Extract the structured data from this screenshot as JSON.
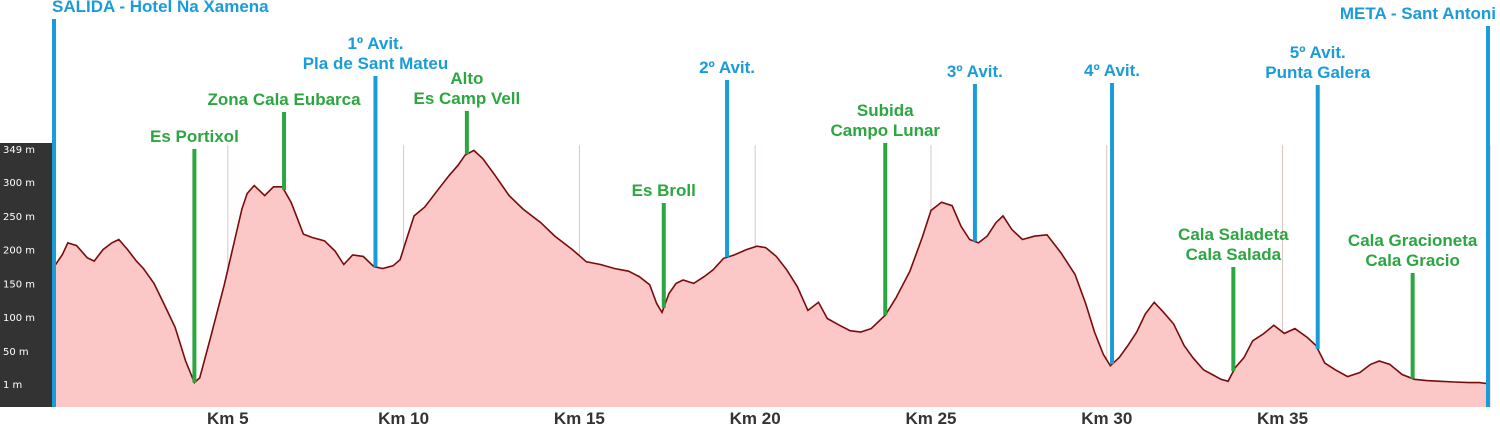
{
  "chart_data": {
    "type": "area",
    "unit": "m",
    "y_ticks": [
      "1 m",
      "50 m",
      "100 m",
      "150 m",
      "200 m",
      "250 m",
      "300 m",
      "349 m"
    ],
    "x_ticks": [
      "Km 5",
      "Km 10",
      "Km 15",
      "Km 20",
      "Km 25",
      "Km 30",
      "Km 35"
    ],
    "x_range": [
      0,
      40.9
    ],
    "y_range": [
      1,
      349
    ],
    "grid": true,
    "colors": {
      "fill": "#fcc7c7",
      "line": "#7a0b0b",
      "axis_band": "#333333",
      "blue_marker": "#1a9cd8",
      "green_marker": "#2ca640"
    },
    "profile": [
      [
        0,
        170
      ],
      [
        0.3,
        193
      ],
      [
        0.45,
        210
      ],
      [
        0.7,
        206
      ],
      [
        1.0,
        188
      ],
      [
        1.2,
        183
      ],
      [
        1.45,
        200
      ],
      [
        1.7,
        210
      ],
      [
        1.9,
        215
      ],
      [
        2.15,
        200
      ],
      [
        2.4,
        183
      ],
      [
        2.6,
        172
      ],
      [
        2.9,
        150
      ],
      [
        3.2,
        118
      ],
      [
        3.5,
        85
      ],
      [
        3.8,
        35
      ],
      [
        4.05,
        3
      ],
      [
        4.2,
        10
      ],
      [
        4.5,
        68
      ],
      [
        4.9,
        148
      ],
      [
        5.2,
        215
      ],
      [
        5.4,
        260
      ],
      [
        5.55,
        283
      ],
      [
        5.75,
        295
      ],
      [
        6.05,
        280
      ],
      [
        6.3,
        293
      ],
      [
        6.55,
        293
      ],
      [
        6.8,
        270
      ],
      [
        6.95,
        250
      ],
      [
        7.15,
        223
      ],
      [
        7.4,
        218
      ],
      [
        7.75,
        213
      ],
      [
        8.05,
        198
      ],
      [
        8.3,
        178
      ],
      [
        8.55,
        192
      ],
      [
        8.85,
        190
      ],
      [
        9.15,
        175
      ],
      [
        9.4,
        172
      ],
      [
        9.7,
        176
      ],
      [
        9.9,
        185
      ],
      [
        10.1,
        218
      ],
      [
        10.3,
        250
      ],
      [
        10.6,
        263
      ],
      [
        11.0,
        290
      ],
      [
        11.3,
        310
      ],
      [
        11.55,
        325
      ],
      [
        11.75,
        340
      ],
      [
        12.0,
        347
      ],
      [
        12.25,
        335
      ],
      [
        12.6,
        310
      ],
      [
        13.0,
        280
      ],
      [
        13.4,
        260
      ],
      [
        13.9,
        240
      ],
      [
        14.3,
        220
      ],
      [
        14.8,
        200
      ],
      [
        15.2,
        182
      ],
      [
        15.6,
        178
      ],
      [
        16.0,
        172
      ],
      [
        16.4,
        168
      ],
      [
        16.7,
        160
      ],
      [
        17.0,
        148
      ],
      [
        17.2,
        120
      ],
      [
        17.35,
        107
      ],
      [
        17.55,
        135
      ],
      [
        17.75,
        150
      ],
      [
        17.95,
        155
      ],
      [
        18.25,
        150
      ],
      [
        18.55,
        160
      ],
      [
        18.8,
        170
      ],
      [
        19.1,
        187
      ],
      [
        19.4,
        192
      ],
      [
        19.75,
        200
      ],
      [
        20.05,
        205
      ],
      [
        20.3,
        203
      ],
      [
        20.6,
        190
      ],
      [
        20.9,
        170
      ],
      [
        21.2,
        145
      ],
      [
        21.5,
        110
      ],
      [
        21.8,
        122
      ],
      [
        22.05,
        98
      ],
      [
        22.4,
        88
      ],
      [
        22.7,
        80
      ],
      [
        23.0,
        78
      ],
      [
        23.3,
        83
      ],
      [
        23.7,
        103
      ],
      [
        24.0,
        128
      ],
      [
        24.4,
        168
      ],
      [
        24.75,
        218
      ],
      [
        25.0,
        258
      ],
      [
        25.3,
        270
      ],
      [
        25.6,
        265
      ],
      [
        25.85,
        235
      ],
      [
        26.1,
        215
      ],
      [
        26.35,
        210
      ],
      [
        26.6,
        220
      ],
      [
        26.85,
        240
      ],
      [
        27.05,
        250
      ],
      [
        27.3,
        230
      ],
      [
        27.6,
        215
      ],
      [
        27.95,
        220
      ],
      [
        28.3,
        222
      ],
      [
        28.7,
        195
      ],
      [
        29.1,
        163
      ],
      [
        29.4,
        120
      ],
      [
        29.65,
        78
      ],
      [
        29.9,
        45
      ],
      [
        30.1,
        28
      ],
      [
        30.35,
        40
      ],
      [
        30.6,
        58
      ],
      [
        30.85,
        78
      ],
      [
        31.1,
        105
      ],
      [
        31.35,
        122
      ],
      [
        31.6,
        108
      ],
      [
        31.9,
        90
      ],
      [
        32.2,
        58
      ],
      [
        32.45,
        40
      ],
      [
        32.75,
        22
      ],
      [
        33.0,
        15
      ],
      [
        33.25,
        8
      ],
      [
        33.45,
        5
      ],
      [
        33.65,
        25
      ],
      [
        33.9,
        40
      ],
      [
        34.15,
        65
      ],
      [
        34.45,
        75
      ],
      [
        34.75,
        88
      ],
      [
        35.05,
        76
      ],
      [
        35.35,
        83
      ],
      [
        35.7,
        70
      ],
      [
        35.95,
        58
      ],
      [
        36.2,
        32
      ],
      [
        36.5,
        22
      ],
      [
        36.85,
        12
      ],
      [
        37.2,
        18
      ],
      [
        37.5,
        30
      ],
      [
        37.75,
        35
      ],
      [
        38.05,
        30
      ],
      [
        38.4,
        15
      ],
      [
        38.75,
        8
      ],
      [
        39.1,
        6
      ],
      [
        39.5,
        5
      ],
      [
        39.9,
        4
      ],
      [
        40.3,
        3
      ],
      [
        40.6,
        3
      ],
      [
        40.9,
        1
      ]
    ],
    "markers": [
      {
        "km": 0,
        "color": "blue",
        "lines": [
          "SALIDA - Hotel Na Xamena"
        ],
        "label_top": 12,
        "align": "start"
      },
      {
        "km": 4.05,
        "color": "green",
        "lines": [
          "Es Portixol"
        ],
        "label_top": 142
      },
      {
        "km": 6.6,
        "color": "green",
        "lines": [
          "Zona Cala Eubarca"
        ],
        "label_top": 105
      },
      {
        "km": 9.2,
        "color": "blue",
        "lines": [
          "1º Avit.",
          "Pla de Sant Mateu"
        ],
        "label_top": 49
      },
      {
        "km": 11.8,
        "color": "green",
        "lines": [
          "Alto",
          "Es Camp Vell"
        ],
        "label_top": 84
      },
      {
        "km": 17.4,
        "color": "green",
        "lines": [
          "Es Broll"
        ],
        "label_top": 196
      },
      {
        "km": 19.2,
        "color": "blue",
        "lines": [
          "2º Avit."
        ],
        "label_top": 73
      },
      {
        "km": 23.7,
        "color": "green",
        "lines": [
          "Subida",
          "Campo Lunar"
        ],
        "label_top": 116
      },
      {
        "km": 26.25,
        "color": "blue",
        "lines": [
          "3º Avit."
        ],
        "label_top": 77
      },
      {
        "km": 30.15,
        "color": "blue",
        "lines": [
          "4º Avit."
        ],
        "label_top": 76
      },
      {
        "km": 33.6,
        "color": "green",
        "lines": [
          "Cala Saladeta",
          "Cala Salada"
        ],
        "label_top": 240
      },
      {
        "km": 36.0,
        "color": "blue",
        "lines": [
          "5º Avit.",
          "Punta Galera"
        ],
        "label_top": 58
      },
      {
        "km": 38.7,
        "color": "green",
        "lines": [
          "Cala Gracioneta",
          "Cala Gracio"
        ],
        "label_top": 246
      },
      {
        "km": 40.9,
        "color": "blue",
        "lines": [
          "META - Sant Antoni"
        ],
        "label_top": 19,
        "align": "end"
      }
    ]
  }
}
